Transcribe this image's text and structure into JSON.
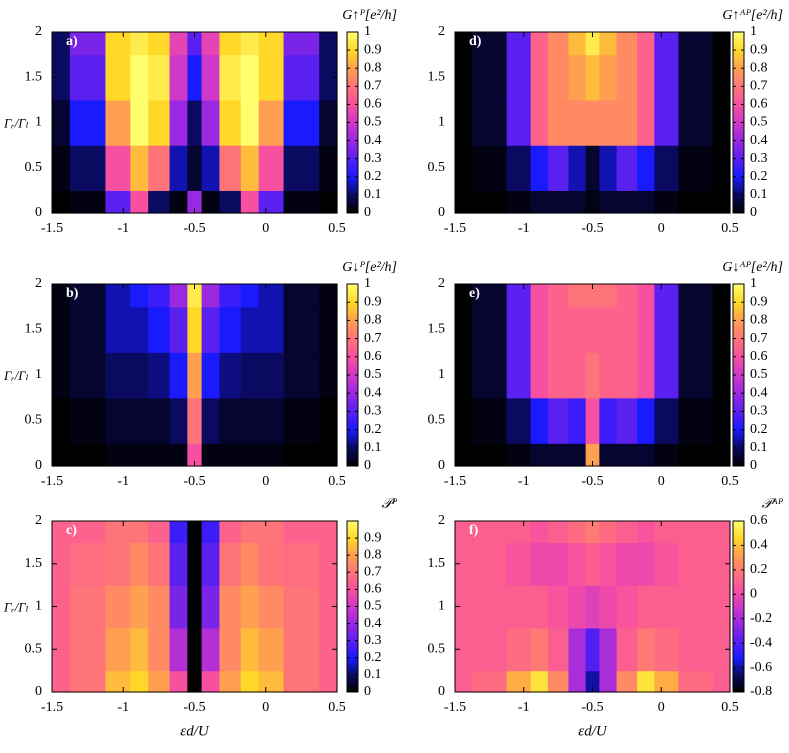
{
  "chart_data": [
    {
      "type": "heatmap",
      "label": "a)",
      "colorbar_label": "G↑ᴾ[e²/h]",
      "ylabel": "Γᵣ/Γₗ",
      "x": [
        -1.5,
        -1.25,
        -1,
        -0.9,
        -0.75,
        -0.6,
        -0.5,
        -0.4,
        -0.25,
        -0.1,
        0,
        0.25,
        0.5
      ],
      "y": [
        0,
        0.5,
        1,
        1.5,
        2
      ],
      "z": [
        [
          0,
          0.02,
          0.3,
          0.6,
          0.1,
          0.02,
          0.4,
          0.02,
          0.1,
          0.6,
          0.3,
          0.02,
          0
        ],
        [
          0.02,
          0.1,
          0.6,
          0.85,
          0.7,
          0.15,
          0.05,
          0.15,
          0.7,
          0.85,
          0.6,
          0.1,
          0.02
        ],
        [
          0.05,
          0.2,
          0.8,
          1,
          0.9,
          0.4,
          0.1,
          0.4,
          0.9,
          1,
          0.8,
          0.2,
          0.05
        ],
        [
          0.1,
          0.3,
          0.9,
          1,
          0.95,
          0.5,
          0.2,
          0.5,
          0.95,
          1,
          0.9,
          0.3,
          0.1
        ],
        [
          0.1,
          0.35,
          0.9,
          0.95,
          0.9,
          0.55,
          0.3,
          0.55,
          0.9,
          0.95,
          0.9,
          0.35,
          0.1
        ]
      ],
      "xlim": [
        -1.5,
        0.5
      ],
      "ylim": [
        0,
        2
      ],
      "zlim": [
        0,
        1
      ],
      "xticks": [
        -1.5,
        -1,
        -0.5,
        0,
        0.5
      ],
      "yticks": [
        0,
        0.5,
        1,
        1.5,
        2
      ],
      "zticks": [
        0,
        0.1,
        0.2,
        0.3,
        0.4,
        0.5,
        0.6,
        0.7,
        0.8,
        0.9,
        1
      ],
      "colormap": [
        "#000000",
        "#0a0a60",
        "#1a1aff",
        "#5a20f0",
        "#9a28e0",
        "#d038c8",
        "#f850a0",
        "#ff7478",
        "#ffa050",
        "#ffd828",
        "#ffff70"
      ]
    },
    {
      "type": "heatmap",
      "label": "b)",
      "colorbar_label": "G↓ᴾ[e²/h]",
      "ylabel": "Γᵣ/Γₗ",
      "x": [
        -1.5,
        -1.25,
        -1,
        -0.9,
        -0.75,
        -0.6,
        -0.5,
        -0.4,
        -0.25,
        -0.1,
        0,
        0.25,
        0.5
      ],
      "y": [
        0,
        0.5,
        1,
        1.5,
        2
      ],
      "z": [
        [
          0,
          0,
          0.02,
          0.02,
          0.02,
          0.02,
          0.6,
          0.02,
          0.02,
          0.02,
          0.02,
          0,
          0
        ],
        [
          0,
          0.02,
          0.05,
          0.05,
          0.05,
          0.1,
          0.7,
          0.1,
          0.05,
          0.05,
          0.05,
          0.02,
          0
        ],
        [
          0.02,
          0.05,
          0.1,
          0.1,
          0.12,
          0.2,
          0.8,
          0.2,
          0.12,
          0.1,
          0.1,
          0.05,
          0.02
        ],
        [
          0.02,
          0.05,
          0.15,
          0.15,
          0.2,
          0.3,
          0.9,
          0.3,
          0.2,
          0.15,
          0.15,
          0.05,
          0.02
        ],
        [
          0.02,
          0.05,
          0.15,
          0.2,
          0.25,
          0.4,
          0.95,
          0.4,
          0.25,
          0.2,
          0.15,
          0.05,
          0.02
        ]
      ],
      "xlim": [
        -1.5,
        0.5
      ],
      "ylim": [
        0,
        2
      ],
      "zlim": [
        0,
        1
      ],
      "xticks": [
        -1.5,
        -1,
        -0.5,
        0,
        0.5
      ],
      "yticks": [
        0,
        0.5,
        1,
        1.5,
        2
      ],
      "zticks": [
        0,
        0.1,
        0.2,
        0.3,
        0.4,
        0.5,
        0.6,
        0.7,
        0.8,
        0.9,
        1
      ],
      "colormap": [
        "#000000",
        "#0a0a60",
        "#1a1aff",
        "#5a20f0",
        "#9a28e0",
        "#d038c8",
        "#f850a0",
        "#ff7478",
        "#ffa050",
        "#ffd828",
        "#ffff70"
      ]
    },
    {
      "type": "heatmap",
      "label": "c)",
      "colorbar_label": "𝒫ᴾ",
      "ylabel": "Γᵣ/Γₗ",
      "xlabel": "εd/U",
      "x": [
        -1.5,
        -1.25,
        -1,
        -0.9,
        -0.75,
        -0.6,
        -0.5,
        -0.4,
        -0.25,
        -0.1,
        0,
        0.25,
        0.5
      ],
      "y": [
        0,
        0.5,
        1,
        1.5,
        2
      ],
      "z": [
        [
          0.65,
          0.7,
          0.85,
          0.9,
          0.8,
          0.6,
          0,
          0.6,
          0.8,
          0.9,
          0.85,
          0.7,
          0.65
        ],
        [
          0.65,
          0.7,
          0.8,
          0.85,
          0.75,
          0.45,
          0,
          0.45,
          0.75,
          0.85,
          0.8,
          0.7,
          0.65
        ],
        [
          0.65,
          0.7,
          0.75,
          0.8,
          0.75,
          0.35,
          0,
          0.35,
          0.75,
          0.8,
          0.75,
          0.7,
          0.65
        ],
        [
          0.65,
          0.68,
          0.7,
          0.75,
          0.7,
          0.3,
          0,
          0.3,
          0.7,
          0.75,
          0.7,
          0.68,
          0.65
        ],
        [
          0.65,
          0.65,
          0.7,
          0.7,
          0.65,
          0.25,
          0,
          0.25,
          0.65,
          0.7,
          0.7,
          0.65,
          0.65
        ]
      ],
      "xlim": [
        -1.5,
        0.5
      ],
      "ylim": [
        0,
        2
      ],
      "zlim": [
        0,
        1
      ],
      "xticks": [
        -1.5,
        -1,
        -0.5,
        0,
        0.5
      ],
      "yticks": [
        0,
        0.5,
        1,
        1.5,
        2
      ],
      "zticks": [
        0,
        0.1,
        0.2,
        0.3,
        0.4,
        0.5,
        0.6,
        0.7,
        0.8,
        0.9
      ],
      "colormap": [
        "#000000",
        "#0a0a60",
        "#1a1aff",
        "#5a20f0",
        "#9a28e0",
        "#d038c8",
        "#f850a0",
        "#ff7478",
        "#ffa050",
        "#ffd828",
        "#ffff70"
      ]
    },
    {
      "type": "heatmap",
      "label": "d)",
      "colorbar_label": "G↑ᴬᴾ[e²/h]",
      "x": [
        -1.5,
        -1.25,
        -1,
        -0.9,
        -0.75,
        -0.6,
        -0.5,
        -0.4,
        -0.25,
        -0.1,
        0,
        0.25,
        0.5
      ],
      "y": [
        0,
        0.5,
        1,
        1.5,
        2
      ],
      "z": [
        [
          0,
          0,
          0.02,
          0.05,
          0.05,
          0.05,
          0.02,
          0.05,
          0.05,
          0.05,
          0.02,
          0,
          0
        ],
        [
          0,
          0.02,
          0.1,
          0.2,
          0.3,
          0.15,
          0.05,
          0.15,
          0.3,
          0.2,
          0.1,
          0.02,
          0
        ],
        [
          0,
          0.05,
          0.3,
          0.65,
          0.75,
          0.75,
          0.75,
          0.75,
          0.75,
          0.65,
          0.3,
          0.05,
          0
        ],
        [
          0,
          0.05,
          0.3,
          0.65,
          0.75,
          0.8,
          0.85,
          0.8,
          0.75,
          0.65,
          0.3,
          0.05,
          0
        ],
        [
          0,
          0.05,
          0.3,
          0.65,
          0.75,
          0.85,
          0.95,
          0.85,
          0.75,
          0.65,
          0.3,
          0.05,
          0
        ]
      ],
      "xlim": [
        -1.5,
        0.5
      ],
      "ylim": [
        0,
        2
      ],
      "zlim": [
        0,
        1
      ],
      "xticks": [
        -1.5,
        -1,
        -0.5,
        0,
        0.5
      ],
      "yticks": [
        0,
        0.5,
        1,
        1.5,
        2
      ],
      "zticks": [
        0,
        0.1,
        0.2,
        0.3,
        0.4,
        0.5,
        0.6,
        0.7,
        0.8,
        0.9,
        1
      ],
      "colormap": [
        "#000000",
        "#0a0a60",
        "#1a1aff",
        "#5a20f0",
        "#9a28e0",
        "#d038c8",
        "#f850a0",
        "#ff7478",
        "#ffa050",
        "#ffd828",
        "#ffff70"
      ]
    },
    {
      "type": "heatmap",
      "label": "e)",
      "colorbar_label": "G↓ᴬᴾ[e²/h]",
      "x": [
        -1.5,
        -1.25,
        -1,
        -0.9,
        -0.75,
        -0.6,
        -0.5,
        -0.4,
        -0.25,
        -0.1,
        0,
        0.25,
        0.5
      ],
      "y": [
        0,
        0.5,
        1,
        1.5,
        2
      ],
      "z": [
        [
          0,
          0,
          0.02,
          0.05,
          0.05,
          0.05,
          0.8,
          0.05,
          0.05,
          0.05,
          0.02,
          0,
          0
        ],
        [
          0,
          0.02,
          0.1,
          0.2,
          0.3,
          0.25,
          0.6,
          0.25,
          0.3,
          0.2,
          0.1,
          0.02,
          0
        ],
        [
          0,
          0.05,
          0.3,
          0.6,
          0.65,
          0.65,
          0.7,
          0.65,
          0.65,
          0.6,
          0.3,
          0.05,
          0
        ],
        [
          0,
          0.05,
          0.3,
          0.6,
          0.65,
          0.65,
          0.65,
          0.65,
          0.65,
          0.6,
          0.3,
          0.05,
          0
        ],
        [
          0,
          0.05,
          0.3,
          0.6,
          0.65,
          0.7,
          0.7,
          0.7,
          0.65,
          0.6,
          0.3,
          0.05,
          0
        ]
      ],
      "xlim": [
        -1.5,
        0.5
      ],
      "ylim": [
        0,
        2
      ],
      "zlim": [
        0,
        1
      ],
      "xticks": [
        -1.5,
        -1,
        -0.5,
        0,
        0.5
      ],
      "yticks": [
        0,
        0.5,
        1,
        1.5,
        2
      ],
      "zticks": [
        0,
        0.1,
        0.2,
        0.3,
        0.4,
        0.5,
        0.6,
        0.7,
        0.8,
        0.9,
        1
      ],
      "colormap": [
        "#000000",
        "#0a0a60",
        "#1a1aff",
        "#5a20f0",
        "#9a28e0",
        "#d038c8",
        "#f850a0",
        "#ff7478",
        "#ffa050",
        "#ffd828",
        "#ffff70"
      ]
    },
    {
      "type": "heatmap",
      "label": "f)",
      "colorbar_label": "𝒫ᴬᴾ",
      "xlabel": "εd/U",
      "x": [
        -1.5,
        -1.25,
        -1,
        -0.9,
        -0.75,
        -0.6,
        -0.5,
        -0.4,
        -0.25,
        -0.1,
        0,
        0.25,
        0.5
      ],
      "y": [
        0,
        0.5,
        1,
        1.5,
        2
      ],
      "z": [
        [
          0.1,
          0.15,
          0.35,
          0.5,
          0.25,
          -0.2,
          -0.6,
          -0.2,
          0.25,
          0.5,
          0.35,
          0.15,
          0.1
        ],
        [
          0.1,
          0.1,
          0.15,
          0.2,
          0.1,
          -0.2,
          -0.4,
          -0.2,
          0.1,
          0.2,
          0.15,
          0.1,
          0.1
        ],
        [
          0.1,
          0.1,
          0.1,
          0.1,
          0.05,
          0,
          -0.05,
          0,
          0.05,
          0.1,
          0.1,
          0.1,
          0.1
        ],
        [
          0.1,
          0.1,
          0.05,
          0,
          0,
          0.05,
          0.1,
          0.05,
          0,
          0,
          0.05,
          0.1,
          0.1
        ],
        [
          0.1,
          0.1,
          0.1,
          0.05,
          0.1,
          0.15,
          0.2,
          0.15,
          0.1,
          0.05,
          0.1,
          0.1,
          0.1
        ]
      ],
      "xlim": [
        -1.5,
        0.5
      ],
      "ylim": [
        0,
        2
      ],
      "zlim": [
        -0.8,
        0.6
      ],
      "xticks": [
        -1.5,
        -1,
        -0.5,
        0,
        0.5
      ],
      "yticks": [
        0,
        0.5,
        1,
        1.5,
        2
      ],
      "zticks": [
        -0.8,
        -0.6,
        -0.4,
        -0.2,
        0,
        0.2,
        0.4,
        0.6
      ],
      "colormap": [
        "#000000",
        "#0a0a60",
        "#1a1aff",
        "#5a20f0",
        "#9a28e0",
        "#d038c8",
        "#f850a0",
        "#ff7478",
        "#ffa050",
        "#ffd828",
        "#ffff70"
      ]
    }
  ]
}
